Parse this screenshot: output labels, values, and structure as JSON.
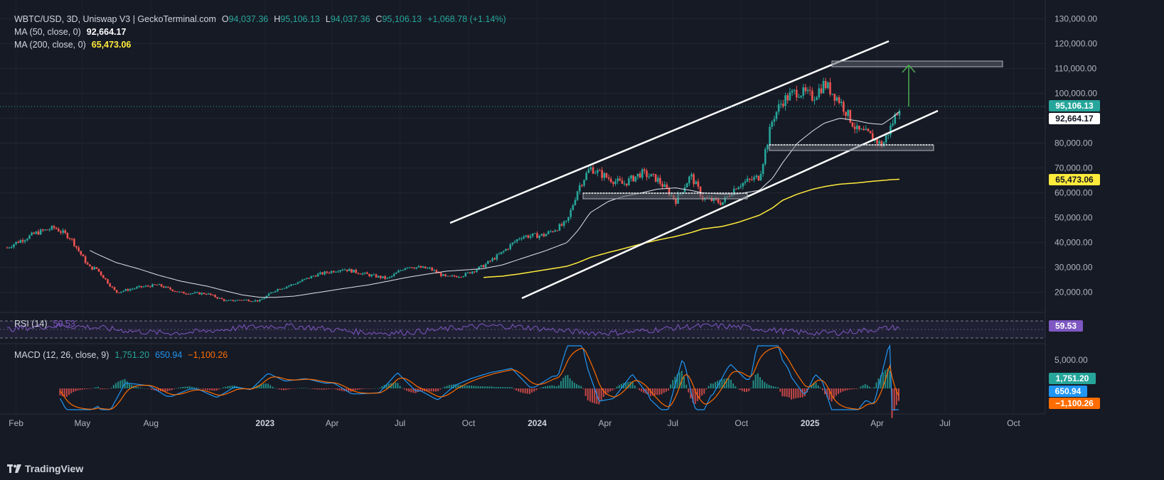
{
  "header": {
    "symbol": "WBTC/USD, 3D, Uniswap V3 | GeckoTerminal.com",
    "o_label": "O",
    "o_value": "94,037.36",
    "h_label": "H",
    "h_value": "95,106.13",
    "l_label": "L",
    "l_value": "94,037.36",
    "c_label": "C",
    "c_value": "95,106.13",
    "change": "+1,068.78 (+1.14%)",
    "ma50_label": "MA (50, close, 0)",
    "ma50_value": "92,664.17",
    "ma200_label": "MA (200, close, 0)",
    "ma200_value": "65,473.06"
  },
  "rsi": {
    "label": "RSI (14)",
    "value": "59.53"
  },
  "macd": {
    "label": "MACD (12, 26, close, 9)",
    "hist_value": "1,751.20",
    "macd_value": "650.94",
    "signal_value": "−1,100.26",
    "axis_tick": "5,000.00"
  },
  "price_axis": {
    "ticks": [
      "130,000.00",
      "120,000.00",
      "110,000.00",
      "100,000.00",
      "90,000.00",
      "80,000.00",
      "70,000.00",
      "60,000.00",
      "50,000.00",
      "40,000.00",
      "30,000.00",
      "20,000.00"
    ],
    "last_price": "95,106.13",
    "ma50_tag": "92,664.17",
    "ma200_tag": "65,473.06",
    "rsi_tag": "59.53"
  },
  "time_axis": [
    "Feb",
    "May",
    "Aug",
    "2023",
    "Apr",
    "Jul",
    "Oct",
    "2024",
    "Apr",
    "Jul",
    "Oct",
    "2025",
    "Apr",
    "Jul",
    "Oct"
  ],
  "brand": "TradingView",
  "colors": {
    "background": "#161a25",
    "up": "#26a69a",
    "down": "#ef5350",
    "ma50": "#e0e3eb",
    "ma200": "#ffeb3b",
    "rsi": "#7e57c2",
    "macd": "#2196f3",
    "signal": "#ff6d00",
    "target_arrow": "#4caf50"
  },
  "chart_data": {
    "type": "candlestick",
    "symbol": "WBTC/USD",
    "interval": "3D",
    "ylim": [
      15000,
      133000
    ],
    "last_close": 95106.13,
    "ma50_last": 92664.17,
    "ma200_last": 65473.06,
    "x": [
      "2022-01-20",
      "2022-02-01",
      "2022-03-01",
      "2022-03-25",
      "2022-04-15",
      "2022-05-10",
      "2022-05-20",
      "2022-06-15",
      "2022-07-15",
      "2022-08-10",
      "2022-09-10",
      "2022-10-15",
      "2022-11-10",
      "2022-12-01",
      "2022-12-25",
      "2023-01-15",
      "2023-02-10",
      "2023-03-10",
      "2023-03-25",
      "2023-04-15",
      "2023-05-20",
      "2023-06-15",
      "2023-07-10",
      "2023-08-10",
      "2023-09-01",
      "2023-09-25",
      "2023-10-20",
      "2023-11-15",
      "2023-12-10",
      "2024-01-10",
      "2024-02-10",
      "2024-02-25",
      "2024-03-12",
      "2024-04-05",
      "2024-04-25",
      "2024-05-20",
      "2024-06-10",
      "2024-07-05",
      "2024-07-25",
      "2024-08-10",
      "2024-09-05",
      "2024-09-25",
      "2024-10-25",
      "2024-11-12",
      "2024-11-25",
      "2024-12-15",
      "2025-01-05",
      "2025-01-20",
      "2025-02-10",
      "2025-03-05",
      "2025-03-20",
      "2025-04-08",
      "2025-04-20",
      "2025-05-01"
    ],
    "close": [
      38000,
      40000,
      44000,
      46000,
      42000,
      30000,
      29500,
      20000,
      22000,
      23000,
      19800,
      19500,
      16500,
      17000,
      16600,
      21000,
      23500,
      27000,
      28000,
      29500,
      27000,
      25500,
      30500,
      29500,
      26000,
      27000,
      30500,
      36000,
      42500,
      43000,
      48000,
      62000,
      70000,
      66000,
      63500,
      68000,
      65500,
      57000,
      67000,
      58000,
      56000,
      63000,
      66500,
      90000,
      97000,
      101000,
      98500,
      104000,
      97000,
      85000,
      83500,
      79000,
      87000,
      95106.13
    ],
    "ma50": [
      null,
      null,
      null,
      null,
      null,
      37000,
      35500,
      32000,
      29500,
      27000,
      24500,
      22500,
      20500,
      19000,
      18000,
      18000,
      18500,
      19800,
      20500,
      21500,
      23000,
      24500,
      26000,
      27500,
      28500,
      29000,
      29500,
      31000,
      33500,
      36500,
      40000,
      45000,
      52000,
      56500,
      58500,
      60000,
      61500,
      62000,
      61000,
      60000,
      59500,
      59500,
      61000,
      66000,
      72000,
      80000,
      85000,
      88000,
      90000,
      89000,
      88000,
      87500,
      90000,
      92664.17
    ],
    "ma200": [
      null,
      null,
      null,
      null,
      null,
      null,
      null,
      null,
      null,
      null,
      null,
      null,
      null,
      null,
      null,
      null,
      null,
      null,
      null,
      null,
      null,
      null,
      null,
      null,
      null,
      null,
      26000,
      26500,
      27500,
      29000,
      30500,
      32000,
      34000,
      36000,
      37500,
      39500,
      41000,
      42500,
      44000,
      45500,
      46500,
      48000,
      51000,
      54000,
      57000,
      59500,
      61500,
      62500,
      63500,
      64000,
      64500,
      65000,
      65300,
      65473.06
    ],
    "annotations": {
      "ascending_channel": true,
      "support_zone": [
        77000,
        79500
      ],
      "prior_support": [
        58000,
        60000
      ],
      "target_zone": [
        110500,
        112500
      ]
    },
    "rsi_last": 59.53,
    "macd_last": {
      "histogram": 1751.2,
      "macd": 650.94,
      "signal": -1100.26
    }
  }
}
